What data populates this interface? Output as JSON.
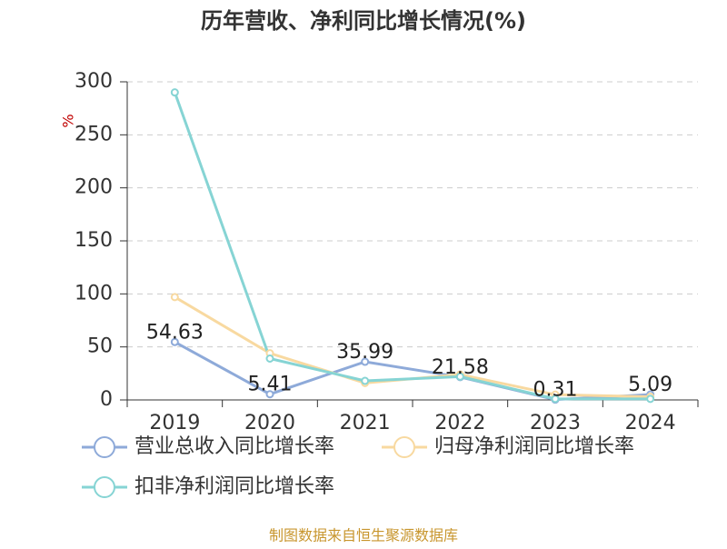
{
  "chart_data": {
    "type": "line",
    "title": "历年营收、净利同比增长情况(%)",
    "y_label": "%",
    "categories": [
      "2019",
      "2020",
      "2021",
      "2022",
      "2023",
      "2024"
    ],
    "series": [
      {
        "name": "营业总收入同比增长率",
        "color": "#8eaad9",
        "values": [
          54.63,
          5.41,
          35.99,
          21.58,
          0.31,
          5.09
        ],
        "show_labels": true
      },
      {
        "name": "归母净利润同比增长率",
        "color": "#f8d9a0",
        "values": [
          97,
          44,
          16,
          24,
          5,
          3
        ]
      },
      {
        "name": "扣非净利润同比增长率",
        "color": "#86d4d4",
        "values": [
          290,
          39,
          18,
          22,
          1,
          1
        ]
      }
    ],
    "ylim": [
      0,
      300
    ],
    "yticks": [
      0,
      50,
      100,
      150,
      200,
      250,
      300
    ],
    "grid": true,
    "source": "制图数据来自恒生聚源数据库"
  }
}
